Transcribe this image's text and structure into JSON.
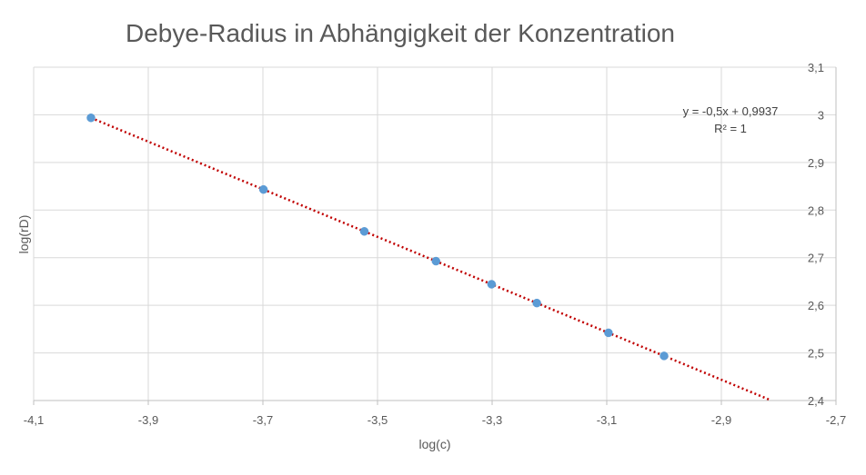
{
  "chart_data": {
    "type": "scatter",
    "title": "Debye-Radius in Abhängigkeit der Konzentration",
    "xlabel": "log(c)",
    "ylabel": "log(rD)",
    "xlim": [
      -4.1,
      -2.7
    ],
    "ylim": [
      2.4,
      3.1
    ],
    "x_ticks": [
      -4.1,
      -3.9,
      -3.7,
      -3.5,
      -3.3,
      -3.1,
      -2.9,
      -2.7
    ],
    "y_ticks": [
      2.4,
      2.5,
      2.6,
      2.7,
      2.8,
      2.9,
      3.0,
      3.1
    ],
    "x_tick_labels": [
      "-4,1",
      "-3,9",
      "-3,7",
      "-3,5",
      "-3,3",
      "-3,1",
      "-2,9",
      "-2,7"
    ],
    "y_tick_labels": [
      "2,4",
      "2,5",
      "2,6",
      "2,7",
      "2,8",
      "2,9",
      "3",
      "3,1"
    ],
    "y_axis_side": "right",
    "grid": true,
    "legend": false,
    "series": [
      {
        "x": [
          -4.0,
          -3.699,
          -3.523,
          -3.398,
          -3.301,
          -3.222,
          -3.097,
          -3.0
        ],
        "y": [
          2.9937,
          2.8432,
          2.7552,
          2.6927,
          2.6442,
          2.6047,
          2.5422,
          2.4937
        ],
        "color": "#5b9bd5"
      }
    ],
    "trendline": {
      "type": "linear",
      "slope": -0.5,
      "intercept": 0.9937,
      "x_range": [
        -4.0,
        -2.813
      ],
      "color": "#c00000",
      "style": "dotted"
    },
    "annotations": {
      "equation": "y = -0,5x + 0,9937",
      "r_squared": "R² = 1"
    }
  }
}
